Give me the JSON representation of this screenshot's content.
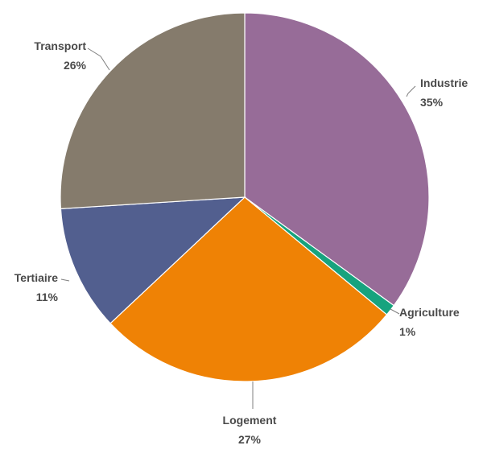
{
  "chart_data": {
    "type": "pie",
    "slices": [
      {
        "label": "Industrie",
        "value": 35,
        "display": "35%",
        "color": "#976c98"
      },
      {
        "label": "Agriculture",
        "value": 1,
        "display": "1%",
        "color": "#17a37e"
      },
      {
        "label": "Logement",
        "value": 27,
        "display": "27%",
        "color": "#ef8205"
      },
      {
        "label": "Tertiaire",
        "value": 11,
        "display": "11%",
        "color": "#525f8f"
      },
      {
        "label": "Transport",
        "value": 26,
        "display": "26%",
        "color": "#857b6c"
      }
    ],
    "start_angle_deg": 0,
    "direction": "clockwise",
    "legend": "none"
  }
}
